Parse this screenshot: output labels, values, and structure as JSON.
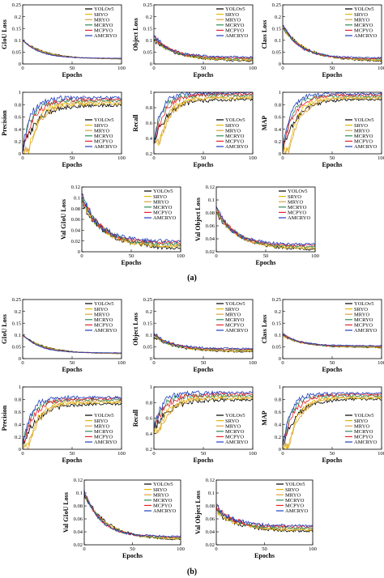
{
  "series_names": [
    "YOLOv5",
    "SRYO",
    "MRYO",
    "MCRYO",
    "MCPYO",
    "AMCRYO"
  ],
  "series_colors": [
    "#000000",
    "#e6b800",
    "#d9a441",
    "#2e8b57",
    "#e8232b",
    "#1f3fbf"
  ],
  "panel_labels": [
    "(a)",
    "(b)"
  ],
  "x_tick_values": [
    0,
    50,
    100
  ],
  "chart_data": [
    {
      "id": "a1",
      "type": "line",
      "xlabel": "Epochs",
      "ylabel": "GIoU Loss",
      "xlim": [
        0,
        100
      ],
      "ylim": [
        0,
        0.25
      ],
      "yticks": [
        0,
        0.05,
        0.1,
        0.15,
        0.2,
        0.25
      ],
      "shape": "decay",
      "y_start": 0.1,
      "y_end": 0.022,
      "noise": 0.0015,
      "legend": "top-right"
    },
    {
      "id": "a2",
      "type": "line",
      "xlabel": "Epochs",
      "ylabel": "Object Loss",
      "xlim": [
        0,
        100
      ],
      "ylim": [
        0,
        0.25
      ],
      "yticks": [
        0,
        0.05,
        0.1,
        0.15,
        0.2,
        0.25
      ],
      "shape": "decay",
      "y_start": 0.11,
      "y_end": 0.02,
      "noise": 0.006,
      "legend": "top-right"
    },
    {
      "id": "a3",
      "type": "line",
      "xlabel": "Epochs",
      "ylabel": "Class Loss",
      "xlim": [
        0,
        100
      ],
      "ylim": [
        0,
        0.25
      ],
      "yticks": [
        0,
        0.05,
        0.1,
        0.15,
        0.2,
        0.25
      ],
      "shape": "decay",
      "y_start": 0.16,
      "y_end": 0.018,
      "noise": 0.005,
      "legend": "top-right"
    },
    {
      "id": "a4",
      "type": "line",
      "xlabel": "Epochs",
      "ylabel": "Precision",
      "xlim": [
        0,
        100
      ],
      "ylim": [
        0,
        1.0
      ],
      "yticks": [
        0,
        0.2,
        0.4,
        0.6,
        0.8,
        1.0
      ],
      "shape": "rise",
      "y_start": 0.05,
      "y_end": 0.85,
      "noise": 0.04,
      "legend": "bottom-right"
    },
    {
      "id": "a5",
      "type": "line",
      "xlabel": "Epochs",
      "ylabel": "Recall",
      "xlim": [
        0,
        100
      ],
      "ylim": [
        0.2,
        1.0
      ],
      "yticks": [
        0.2,
        0.4,
        0.6,
        0.8,
        1.0
      ],
      "shape": "rise",
      "y_start": 0.35,
      "y_end": 0.95,
      "noise": 0.03,
      "legend": "bottom-right"
    },
    {
      "id": "a6",
      "type": "line",
      "xlabel": "Epochs",
      "ylabel": "MAP",
      "xlim": [
        0,
        100
      ],
      "ylim": [
        0,
        1.0
      ],
      "yticks": [
        0,
        0.2,
        0.4,
        0.6,
        0.8,
        1.0
      ],
      "shape": "rise",
      "y_start": 0.05,
      "y_end": 0.93,
      "noise": 0.03,
      "legend": "bottom-right"
    },
    {
      "id": "a7",
      "type": "line",
      "xlabel": "Epochs",
      "ylabel": "Val GIoU Loss",
      "xlim": [
        0,
        100
      ],
      "ylim": [
        0,
        0.12
      ],
      "yticks": [
        0,
        0.02,
        0.04,
        0.06,
        0.08,
        0.1,
        0.12
      ],
      "shape": "decay",
      "y_start": 0.1,
      "y_end": 0.012,
      "noise": 0.005,
      "legend": "top-right"
    },
    {
      "id": "a8",
      "type": "line",
      "xlabel": "Epochs",
      "ylabel": "Val Object Loss",
      "xlim": [
        0,
        100
      ],
      "ylim": [
        0.02,
        0.12
      ],
      "yticks": [
        0.02,
        0.04,
        0.06,
        0.08,
        0.1,
        0.12
      ],
      "shape": "decay",
      "y_start": 0.085,
      "y_end": 0.027,
      "noise": 0.003,
      "legend": "top-right"
    },
    {
      "id": "b1",
      "type": "line",
      "xlabel": "Epochs",
      "ylabel": "GIoU Loss",
      "xlim": [
        0,
        100
      ],
      "ylim": [
        0,
        0.25
      ],
      "yticks": [
        0,
        0.05,
        0.1,
        0.15,
        0.2,
        0.25
      ],
      "shape": "decay",
      "y_start": 0.1,
      "y_end": 0.022,
      "noise": 0.0015,
      "legend": "top-right"
    },
    {
      "id": "b2",
      "type": "line",
      "xlabel": "Epochs",
      "ylabel": "Object Loss",
      "xlim": [
        0,
        100
      ],
      "ylim": [
        0,
        0.25
      ],
      "yticks": [
        0,
        0.05,
        0.1,
        0.15,
        0.2,
        0.25
      ],
      "shape": "decay",
      "y_start": 0.1,
      "y_end": 0.035,
      "noise": 0.005,
      "legend": "top-right"
    },
    {
      "id": "b3",
      "type": "line",
      "xlabel": "Epochs",
      "ylabel": "Class Loss",
      "xlim": [
        0,
        100
      ],
      "ylim": [
        0,
        0.25
      ],
      "yticks": [
        0,
        0.05,
        0.1,
        0.15,
        0.2,
        0.25
      ],
      "shape": "decay",
      "y_start": 0.1,
      "y_end": 0.05,
      "noise": 0.003,
      "legend": "top-right"
    },
    {
      "id": "b4",
      "type": "line",
      "xlabel": "Epochs",
      "ylabel": "Precision",
      "xlim": [
        0,
        100
      ],
      "ylim": [
        0,
        1.0
      ],
      "yticks": [
        0,
        0.2,
        0.4,
        0.6,
        0.8,
        1.0
      ],
      "shape": "rise",
      "y_start": 0.05,
      "y_end": 0.78,
      "noise": 0.035,
      "legend": "bottom-right"
    },
    {
      "id": "b5",
      "type": "line",
      "xlabel": "Epochs",
      "ylabel": "Recall",
      "xlim": [
        0,
        100
      ],
      "ylim": [
        0.2,
        1.0
      ],
      "yticks": [
        0.2,
        0.4,
        0.6,
        0.8,
        1.0
      ],
      "shape": "rise",
      "y_start": 0.45,
      "y_end": 0.88,
      "noise": 0.03,
      "legend": "bottom-right"
    },
    {
      "id": "b6",
      "type": "line",
      "xlabel": "Epochs",
      "ylabel": "MAP",
      "xlim": [
        0,
        100
      ],
      "ylim": [
        0,
        1.0
      ],
      "yticks": [
        0,
        0.2,
        0.4,
        0.6,
        0.8,
        1.0
      ],
      "shape": "rise",
      "y_start": 0.05,
      "y_end": 0.85,
      "noise": 0.03,
      "legend": "bottom-right"
    },
    {
      "id": "b7",
      "type": "line",
      "xlabel": "Epochs",
      "ylabel": "Val GIoU Loss",
      "xlim": [
        0,
        100
      ],
      "ylim": [
        0.02,
        0.12
      ],
      "yticks": [
        0.02,
        0.04,
        0.06,
        0.08,
        0.1,
        0.12
      ],
      "shape": "decay",
      "y_start": 0.1,
      "y_end": 0.03,
      "noise": 0.002,
      "legend": "top-right"
    },
    {
      "id": "b8",
      "type": "line",
      "xlabel": "Epochs",
      "ylabel": "Val Object Loss",
      "xlim": [
        0,
        100
      ],
      "ylim": [
        0.02,
        0.12
      ],
      "yticks": [
        0.02,
        0.04,
        0.06,
        0.08,
        0.1,
        0.12
      ],
      "shape": "decay",
      "y_start": 0.075,
      "y_end": 0.045,
      "noise": 0.003,
      "legend": "top-right"
    }
  ]
}
